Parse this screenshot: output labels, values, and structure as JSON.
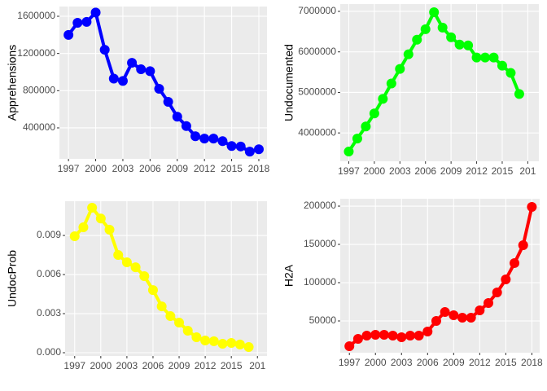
{
  "chart_data": [
    {
      "type": "line",
      "ylabel": "Apprehensions",
      "color": "#0000ff",
      "x": [
        1997,
        1998,
        1999,
        2000,
        2001,
        2002,
        2003,
        2004,
        2005,
        2006,
        2007,
        2008,
        2009,
        2010,
        2011,
        2012,
        2013,
        2014,
        2015,
        2016,
        2017,
        2018
      ],
      "values": [
        1400000,
        1530000,
        1540000,
        1640000,
        1240000,
        930000,
        905000,
        1100000,
        1030000,
        1010000,
        820000,
        680000,
        520000,
        420000,
        310000,
        285000,
        285000,
        257000,
        205000,
        200000,
        145000,
        170000
      ],
      "xlim": [
        1996,
        2018.9
      ],
      "ylim": [
        67000,
        1705000
      ],
      "xticks": [
        1997,
        2000,
        2003,
        2006,
        2009,
        2012,
        2015,
        2018
      ],
      "yticks": [
        400000,
        800000,
        1200000,
        1600000
      ],
      "grid": true
    },
    {
      "type": "line",
      "ylabel": "Undocumented",
      "color": "#00ff00",
      "x": [
        1997,
        1998,
        1999,
        2000,
        2001,
        2002,
        2003,
        2004,
        2005,
        2006,
        2007,
        2008,
        2009,
        2010,
        2011,
        2012,
        2013,
        2014,
        2015,
        2016,
        2017
      ],
      "values": [
        3540000,
        3860000,
        4160000,
        4480000,
        4840000,
        5220000,
        5580000,
        5940000,
        6300000,
        6560000,
        6980000,
        6600000,
        6360000,
        6180000,
        6160000,
        5860000,
        5860000,
        5860000,
        5660000,
        5480000,
        4960000
      ],
      "xlim": [
        1996,
        2019.3
      ],
      "ylim": [
        3300000,
        7180000
      ],
      "xticks": [
        1997,
        2000,
        2003,
        2006,
        2009,
        2012,
        2015,
        {
          "value": 2018,
          "label": "201"
        }
      ],
      "yticks": [
        4000000,
        5000000,
        6000000,
        7000000
      ],
      "grid": true
    },
    {
      "type": "line",
      "ylabel": "UndocProb",
      "color": "#ffff00",
      "x": [
        1997,
        1998,
        1999,
        2000,
        2001,
        2002,
        2003,
        2004,
        2005,
        2006,
        2007,
        2008,
        2009,
        2010,
        2011,
        2012,
        2013,
        2014,
        2015,
        2016,
        2017
      ],
      "values": [
        0.00894,
        0.00963,
        0.01113,
        0.0103,
        0.00944,
        0.0075,
        0.00694,
        0.00656,
        0.00588,
        0.00481,
        0.00356,
        0.00281,
        0.00231,
        0.00169,
        0.00119,
        0.00094,
        0.00088,
        0.00069,
        0.00075,
        0.00063,
        0.00044
      ],
      "xlim": [
        1995.9,
        2019.1
      ],
      "ylim": [
        -0.00025,
        0.01163
      ],
      "xticks": [
        1997,
        2000,
        2003,
        2006,
        2009,
        2012,
        2015,
        {
          "value": 2018,
          "label": "201"
        }
      ],
      "yticks": [
        {
          "value": 0,
          "label": "0.000"
        },
        0.003,
        0.006,
        0.009
      ],
      "grid": true
    },
    {
      "type": "line",
      "ylabel": "H2A",
      "color": "#ff0000",
      "x": [
        1997,
        1998,
        1999,
        2000,
        2001,
        2002,
        2003,
        2004,
        2005,
        2006,
        2007,
        2008,
        2009,
        2010,
        2011,
        2012,
        2013,
        2014,
        2015,
        2016,
        2017,
        2018
      ],
      "values": [
        17000,
        26600,
        30900,
        31900,
        31900,
        30900,
        28700,
        30900,
        30900,
        36200,
        50000,
        61700,
        57400,
        54300,
        54300,
        63800,
        73400,
        87200,
        104300,
        125500,
        149000,
        199000
      ],
      "xlim": [
        1995.95,
        2018.9
      ],
      "ylim": [
        8500,
        209600
      ],
      "xticks": [
        1997,
        2000,
        2003,
        2006,
        2009,
        2012,
        2015,
        2018
      ],
      "yticks": [
        50000,
        100000,
        150000,
        200000
      ],
      "grid": true
    }
  ]
}
